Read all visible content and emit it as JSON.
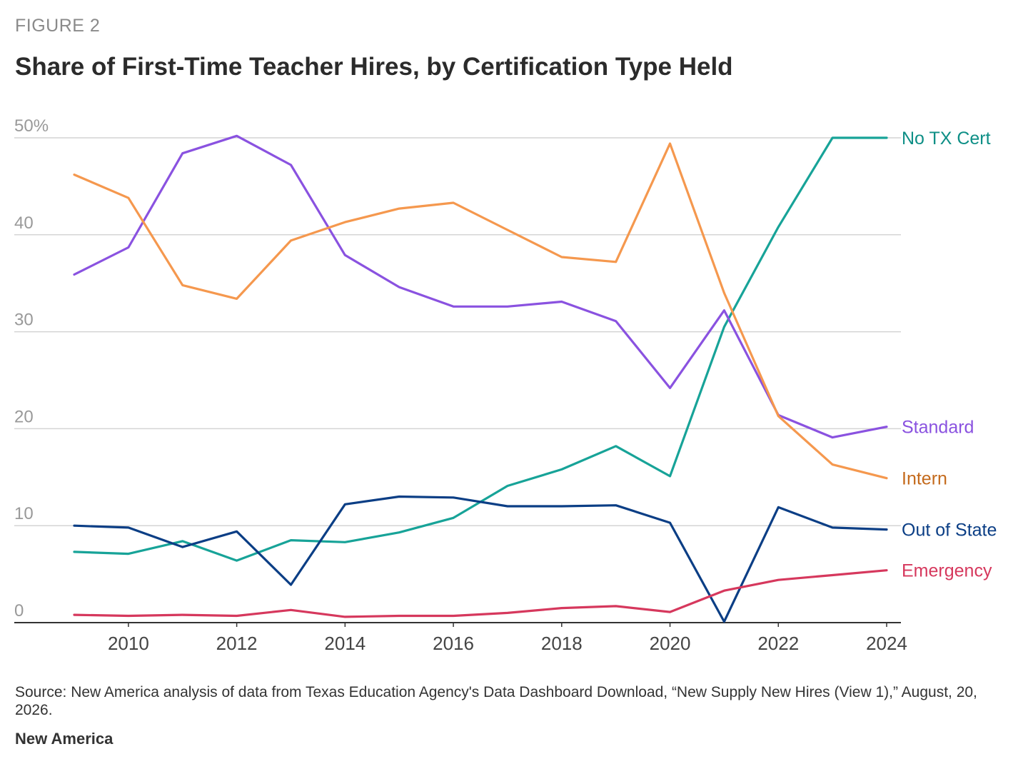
{
  "header": {
    "eyebrow": "FIGURE 2",
    "title": "Share of First-Time Teacher Hires, by Certification Type Held"
  },
  "chart_data": {
    "type": "line",
    "x": [
      2009,
      2010,
      2011,
      2012,
      2013,
      2014,
      2015,
      2016,
      2017,
      2018,
      2019,
      2020,
      2021,
      2022,
      2023,
      2024
    ],
    "xticks": [
      2010,
      2012,
      2014,
      2016,
      2018,
      2020,
      2022,
      2024
    ],
    "yticks": [
      0,
      10,
      20,
      30,
      40,
      50
    ],
    "ytick_labels": [
      "0",
      "10",
      "20",
      "30",
      "40",
      "50%"
    ],
    "ylim": [
      0,
      50
    ],
    "xlim": [
      2009,
      2024
    ],
    "grid": true,
    "legend": "direct labels at right end of lines",
    "series": [
      {
        "name": "No TX Cert",
        "color": "#17a398",
        "label_color": "#0e8f86",
        "values": [
          7.3,
          7.1,
          8.4,
          6.4,
          8.5,
          8.3,
          9.3,
          10.8,
          14.1,
          15.8,
          18.2,
          15.1,
          30.5,
          40.8,
          50.0,
          50.0
        ]
      },
      {
        "name": "Standard",
        "color": "#8a52e0",
        "label_color": "#8a52e0",
        "values": [
          35.9,
          38.7,
          48.4,
          50.2,
          47.2,
          37.9,
          34.6,
          32.6,
          32.6,
          33.1,
          31.1,
          24.2,
          32.2,
          21.4,
          19.1,
          20.2
        ]
      },
      {
        "name": "Intern",
        "color": "#f5984e",
        "label_color": "#c46a1c",
        "values": [
          46.2,
          43.8,
          34.8,
          33.4,
          39.4,
          41.3,
          42.7,
          43.3,
          40.5,
          37.7,
          37.2,
          49.4,
          34.0,
          21.3,
          16.3,
          14.9
        ]
      },
      {
        "name": "Out of State",
        "color": "#0b3e85",
        "label_color": "#0b3e85",
        "values": [
          10.0,
          9.8,
          7.8,
          9.4,
          3.9,
          12.2,
          13.0,
          12.9,
          12.0,
          12.0,
          12.1,
          10.3,
          0.1,
          11.9,
          9.8,
          9.6
        ]
      },
      {
        "name": "Emergency",
        "color": "#d6385d",
        "label_color": "#d6385d",
        "values": [
          0.8,
          0.7,
          0.8,
          0.7,
          1.3,
          0.6,
          0.7,
          0.7,
          1.0,
          1.5,
          1.7,
          1.1,
          3.3,
          4.4,
          4.9,
          5.4
        ]
      }
    ]
  },
  "footer": {
    "source": "Source: New America analysis of data from Texas Education Agency's Data Dashboard Download, “New Supply New Hires (View 1),” August, 20, 2026.",
    "brand": "New America"
  }
}
